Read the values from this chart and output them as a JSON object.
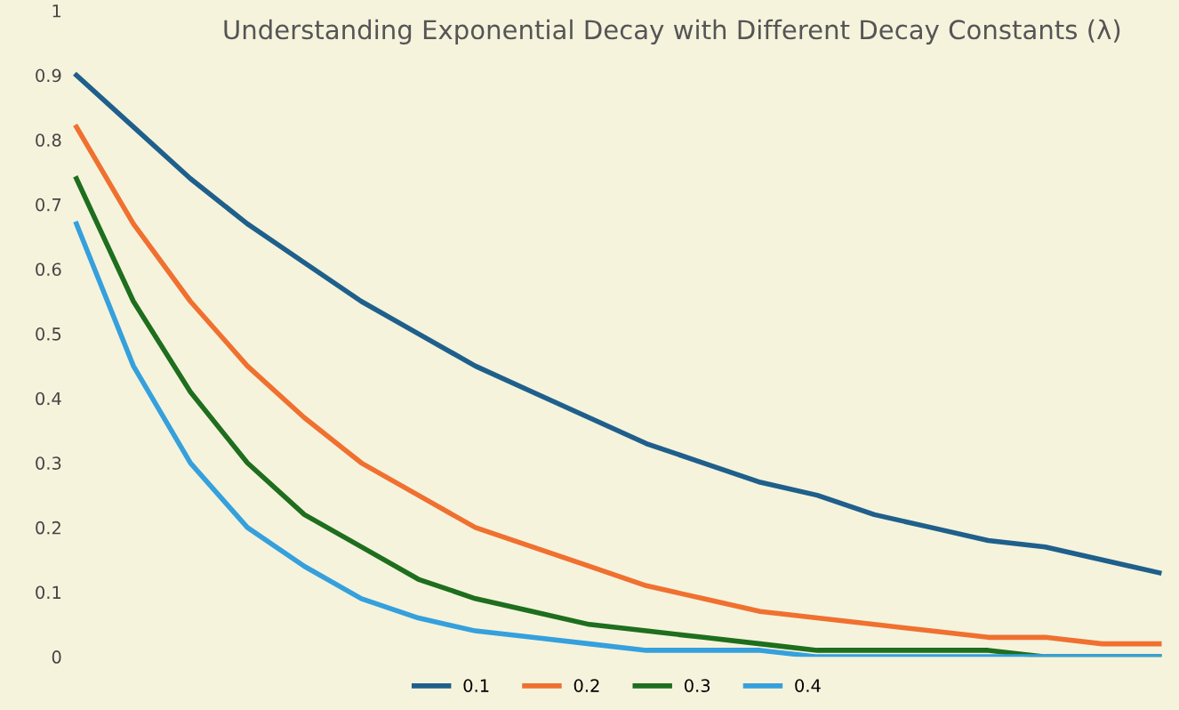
{
  "chart_data": {
    "type": "line",
    "title": "Understanding Exponential Decay with Different Decay Constants (λ)",
    "categories": [
      null,
      null,
      null,
      null,
      null,
      null,
      null,
      null,
      null,
      null,
      null,
      null,
      null,
      null,
      null,
      null,
      null,
      null,
      null,
      null
    ],
    "series": [
      {
        "name": "0.1",
        "color": "#1f5f8b",
        "values": [
          0.9,
          0.82,
          0.74,
          0.67,
          0.61,
          0.55,
          0.5,
          0.45,
          0.41,
          0.37,
          0.33,
          0.3,
          0.27,
          0.25,
          0.22,
          0.2,
          0.18,
          0.17,
          0.15,
          0.13
        ]
      },
      {
        "name": "0.2",
        "color": "#f07030",
        "values": [
          0.82,
          0.67,
          0.55,
          0.45,
          0.37,
          0.3,
          0.25,
          0.2,
          0.17,
          0.14,
          0.11,
          0.09,
          0.07,
          0.06,
          0.05,
          0.04,
          0.03,
          0.03,
          0.02,
          0.02
        ]
      },
      {
        "name": "0.3",
        "color": "#1e6e1e",
        "values": [
          0.74,
          0.55,
          0.41,
          0.3,
          0.22,
          0.17,
          0.12,
          0.09,
          0.07,
          0.05,
          0.04,
          0.03,
          0.02,
          0.01,
          0.01,
          0.01,
          0.01,
          0,
          0,
          0
        ]
      },
      {
        "name": "0.4",
        "color": "#35a0dc",
        "values": [
          0.67,
          0.45,
          0.3,
          0.2,
          0.14,
          0.09,
          0.06,
          0.04,
          0.03,
          0.02,
          0.01,
          0.01,
          0.01,
          0,
          0,
          0,
          0,
          0,
          0,
          0
        ]
      }
    ],
    "ylim": [
      0,
      1
    ],
    "yticks": [
      0,
      0.1,
      0.2,
      0.3,
      0.4,
      0.5,
      0.6,
      0.7,
      0.8,
      0.9,
      1
    ],
    "grid": false,
    "legend": "bottom",
    "marker": "none",
    "line_style": "solid"
  }
}
